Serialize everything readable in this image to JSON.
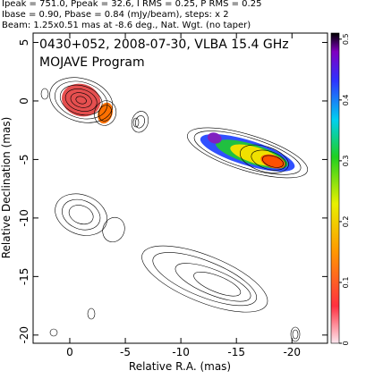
{
  "chart_data": {
    "type": "contour",
    "header": [
      "Ipeak = 751.0, Ppeak = 32.6, I RMS = 0.25, P RMS = 0.25",
      "Ibase = 0.90, Pbase = 0.84 (mJy/beam), steps: x 2",
      "Beam: 1.25x0.51 mas at -8.6 deg., Nat. Wgt. (no taper)"
    ],
    "title": "0430+052, 2008-07-30, VLBA 15.4 GHz",
    "subtitle": "MOJAVE Program",
    "x_label": "Relative R.A. (mas)",
    "y_label": "Relative Declination (mas)",
    "xlim": [
      3.3,
      -23.2
    ],
    "xticks": [
      0,
      -5,
      -10,
      -15,
      -20
    ],
    "ylim": [
      -20.7,
      5.8
    ],
    "yticks": [
      5,
      0,
      -5,
      -10,
      -15,
      -20
    ],
    "colorbar_lim": [
      0,
      0.51
    ],
    "colorbar_ticks": [
      0,
      0.1,
      0.2,
      0.3,
      0.4,
      0.5
    ]
  }
}
